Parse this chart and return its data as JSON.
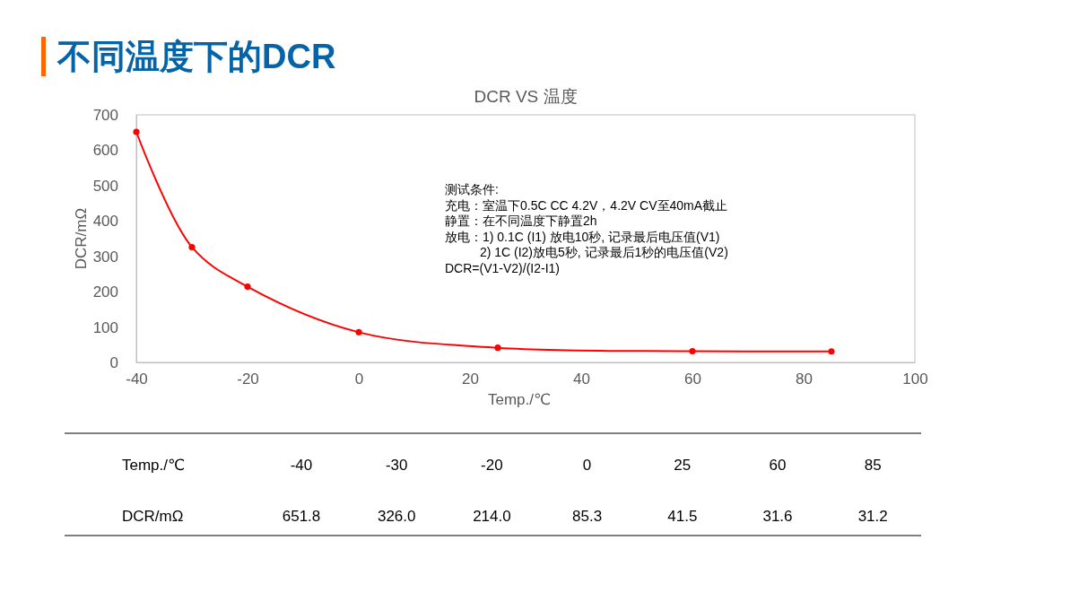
{
  "chart_data": {
    "type": "line",
    "title": "不同温度下的DCR",
    "subtitle": "DCR VS 温度",
    "xlabel": "Temp./℃",
    "ylabel": "DCR/mΩ",
    "x": [
      -40,
      -30,
      -20,
      0,
      25,
      60,
      85
    ],
    "series": [
      {
        "color": "#ff0000",
        "values": [
          651.8,
          326.0,
          214.0,
          85.3,
          41.5,
          31.6,
          31.2
        ]
      }
    ],
    "value_labels": [
      "651.8",
      "326.0",
      "214.0",
      "85.3",
      "41.5",
      "31.6",
      "31.2"
    ],
    "xlim": [
      -40,
      100
    ],
    "xticks": [
      -40,
      -20,
      0,
      20,
      40,
      60,
      80,
      100
    ],
    "ylim": [
      0,
      700
    ],
    "yticks": [
      0,
      100,
      200,
      300,
      400,
      500,
      600,
      700
    ],
    "grid": false,
    "legend": false,
    "marker": "circle",
    "line_style": "solid",
    "annotations": [
      "测试条件:",
      "充电：室温下0.5C CC 4.2V，4.2V CV至40mA截止",
      "静置：在不同温度下静置2h",
      "放电：1) 0.1C (I1) 放电10秒, 记录最后电压值(V1)",
      "          2) 1C (I2)放电5秒, 记录最后1秒的电压值(V2)",
      "DCR=(V1-V2)/(I2-I1)",
      "-40",
      "-30",
      "-20",
      "0",
      "25",
      "60",
      "85"
    ]
  }
}
